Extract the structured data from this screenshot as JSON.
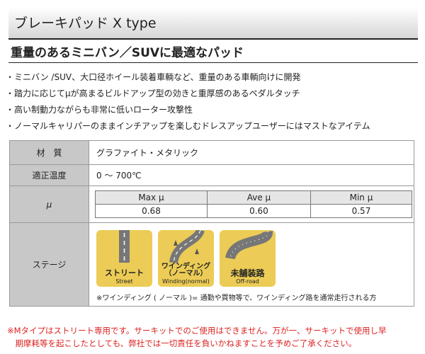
{
  "title": "ブレーキパッド X type",
  "heading": "重量のあるミニバン／SUVに最適なパッド",
  "bullets": [
    "・ミニバン /SUV、大口径ホイール装着車輌など、重量のある車輌向けに開発",
    "・踏力に応じてμが高まるビルドアップ型の効きと重厚感のあるペダルタッチ",
    "・高い制動力ながらも非常に低いローター攻撃性",
    "・ノーマルキャリパーのままインチアップを楽しむドレスアップユーザーにはマストなアイテム"
  ],
  "spec": {
    "material_label": "材　質",
    "material": "グラファイト・メタリック",
    "temp_label": "適正温度",
    "temp": "0 ～ 700℃",
    "mu_label": "μ",
    "mu_headers": [
      "Max μ",
      "Ave μ",
      "Min μ"
    ],
    "mu_values": [
      "0.68",
      "0.60",
      "0.57"
    ],
    "stage_label": "ステージ",
    "stages": [
      {
        "jp": "ストリート",
        "en": "Street",
        "active": true
      },
      {
        "jp": "ワインディング\n（ノーマル）",
        "en": "Winding(normal)",
        "active": true
      },
      {
        "jp": "未舗装路",
        "en": "Off-road",
        "active": true
      }
    ],
    "stage_caption": "※ワインディング ( ノーマル )= 通勤や買物等で、ワインディング路を通常走行される方"
  },
  "notes": [
    "※Mタイプはストリート専用です。サーキットでのご使用はできません。万が一、サーキットで使用し早",
    "　期摩耗等を起こしたとしても、弊社では一切責任を負いかねますことを予めご了承ください。"
  ],
  "colors": {
    "stage_icon": "#eccc56",
    "note": "#dd2222",
    "label_bg": "#c8c8c8"
  }
}
